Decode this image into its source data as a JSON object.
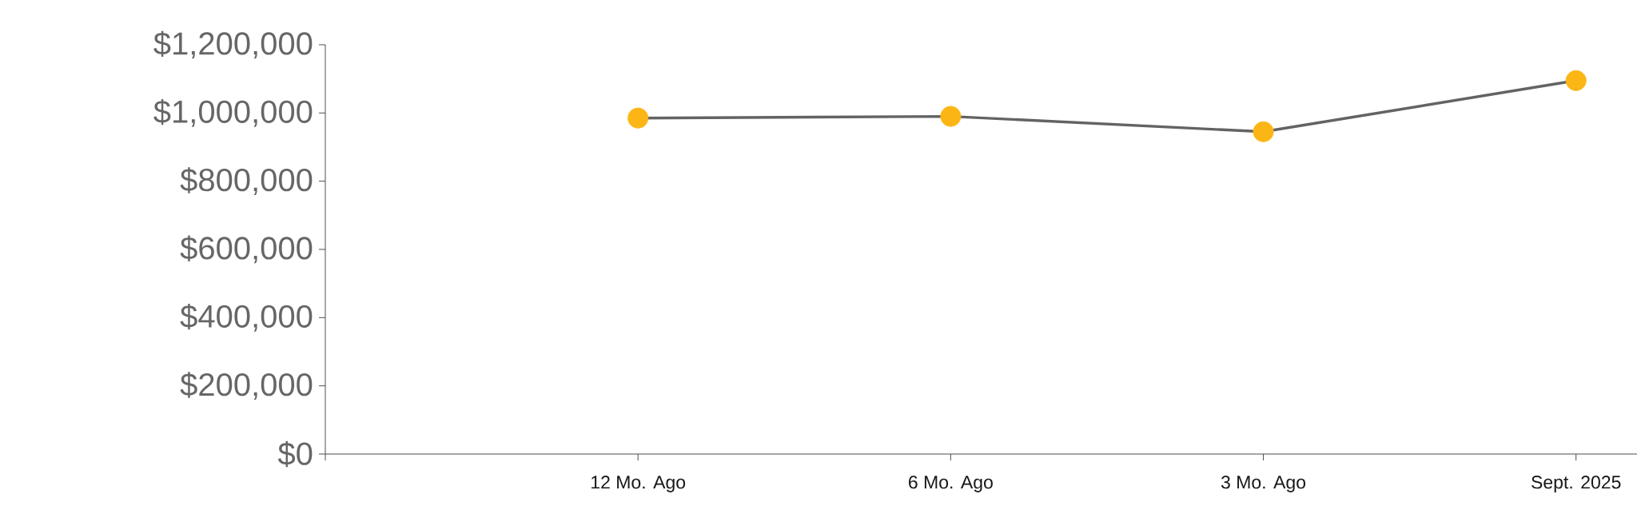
{
  "chart_data": {
    "type": "line",
    "categories": [
      null,
      "12 Mo. Ago",
      "6 Mo. Ago",
      "3 Mo. Ago",
      "Sept. 2025"
    ],
    "series": [
      {
        "color": "#636363",
        "colors": [
          null,
          "#fbb616",
          "#fbb616",
          "#fbb616",
          "#fbb616"
        ],
        "values": [
          null,
          985000,
          990000,
          945000,
          1095000
        ]
      }
    ],
    "marker": "circle",
    "line_style": "solid",
    "ylim": [
      0,
      1200000
    ],
    "yticks": [
      {
        "value": 0,
        "label": "$0"
      },
      {
        "value": 200000,
        "label": "$200,000"
      },
      {
        "value": 400000,
        "label": "$400,000"
      },
      {
        "value": 600000,
        "label": "$600,000"
      },
      {
        "value": 800000,
        "label": "$800,000"
      },
      {
        "value": 1000000,
        "label": "$1,000,000"
      },
      {
        "value": 1200000,
        "label": "$1,200,000"
      }
    ],
    "grid": false
  }
}
